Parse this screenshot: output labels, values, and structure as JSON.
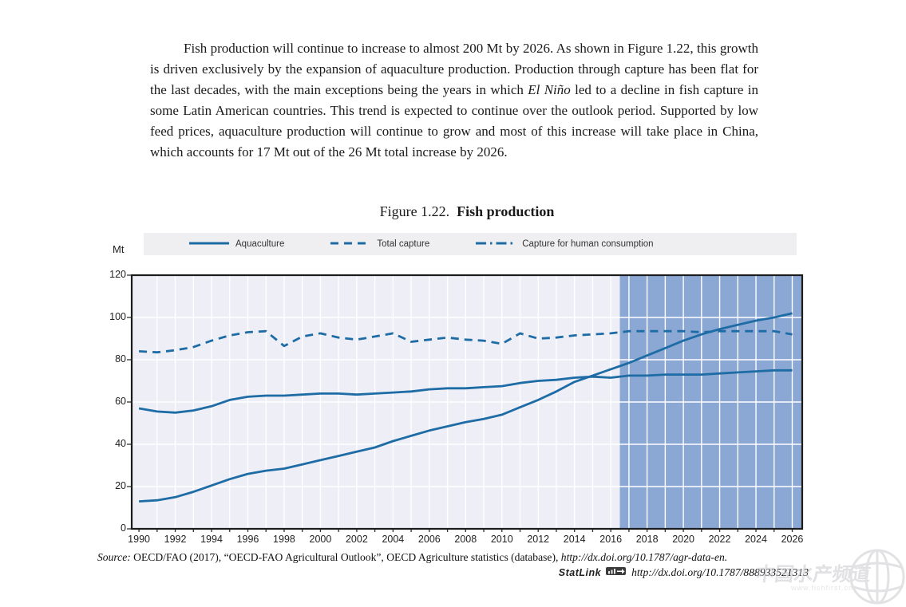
{
  "page": {
    "paragraph": {
      "text_before_italic": "Fish production will continue to increase to almost 200 Mt by 2026. As shown in Figure 1.22, this growth is driven exclusively by the expansion of aquaculture production. Production through capture has been flat for the last decades, with the main exceptions being the years in which ",
      "italic_term": "El Niño",
      "text_after_italic": " led to a decline in fish capture in some Latin American countries. This trend is expected to continue over the outlook period. Supported by low feed prices, aquaculture production will continue to grow and most of this increase will take place in China, which accounts for 17 Mt out of the 26 Mt total increase by 2026."
    },
    "figure": {
      "label": "Figure 1.22.",
      "title": "Fish production"
    },
    "unit_label": "Mt",
    "legend": [
      {
        "name": "Aquaculture",
        "style": "solid"
      },
      {
        "name": "Total capture",
        "style": "dashed"
      },
      {
        "name": "Capture for human consumption",
        "style": "dashdot"
      }
    ],
    "source_line": {
      "prefix_italic": "Source:",
      "text": "  OECD/FAO (2017), “OECD-FAO Agricultural Outlook”, OECD Agriculture statistics (database), ",
      "link_italic": "http://dx.doi.org/10.1787/agr-data-en."
    },
    "statlink": {
      "label": "StatLink",
      "url": "http://dx.doi.org/10.1787/888933521313"
    },
    "watermark": {
      "title": "中国水产频道",
      "url": "www.fishfirst.cn"
    }
  },
  "colors": {
    "line_blue": "#1e6ca5",
    "plot_background": "#edeef6",
    "projection_band": "#8ba7d3",
    "gridline": "#ffffff",
    "frame": "#1c1c1c",
    "legend_bar_background": "#efeff1"
  },
  "chart_data": {
    "type": "line",
    "title": "Figure 1.22. Fish production",
    "xlabel": "",
    "ylabel": "Mt",
    "ylim": [
      0,
      120
    ],
    "xlim": [
      1989.6,
      2026.55
    ],
    "grid": "white yearly vertical and 20-step horizontal gridlines on shaded background",
    "legend_position": "top",
    "projection_band_start": 2016.5,
    "projection_band_end": 2026.55,
    "x": [
      1990,
      1991,
      1992,
      1993,
      1994,
      1995,
      1996,
      1997,
      1998,
      1999,
      2000,
      2001,
      2002,
      2003,
      2004,
      2005,
      2006,
      2007,
      2008,
      2009,
      2010,
      2011,
      2012,
      2013,
      2014,
      2015,
      2016,
      2017,
      2018,
      2019,
      2020,
      2021,
      2022,
      2023,
      2024,
      2025,
      2026
    ],
    "xticks": [
      1990,
      1992,
      1994,
      1996,
      1998,
      2000,
      2002,
      2004,
      2006,
      2008,
      2010,
      2012,
      2014,
      2016,
      2018,
      2020,
      2022,
      2024,
      2026
    ],
    "yticks": [
      0,
      20,
      40,
      60,
      80,
      100,
      120
    ],
    "series": [
      {
        "name": "Aquaculture",
        "line_style": "solid",
        "values": [
          13,
          13.5,
          15,
          17.5,
          20.5,
          23.5,
          26,
          27.5,
          28.5,
          30.5,
          32.5,
          34.5,
          36.5,
          38.5,
          41.5,
          44,
          46.5,
          48.5,
          50.5,
          52,
          54,
          57.5,
          61,
          65,
          69.5,
          72.5,
          75.5,
          78.5,
          82,
          85.5,
          89,
          92,
          94.5,
          96.5,
          98.5,
          100,
          102
        ]
      },
      {
        "name": "Total capture",
        "line_style": "dashed",
        "values": [
          84,
          83.5,
          84.5,
          86,
          89,
          91.5,
          93,
          93.5,
          86.5,
          91,
          92.5,
          90.5,
          89.5,
          91,
          92.5,
          88.5,
          89.5,
          90.5,
          89.5,
          89,
          87.5,
          92.5,
          90,
          90.5,
          91.5,
          92,
          92.5,
          93.5,
          93.5,
          93.5,
          93.5,
          93,
          93.5,
          93.5,
          93.5,
          93.5,
          92
        ]
      },
      {
        "name": "Capture for human consumption",
        "line_style": "dashdot",
        "values": [
          57,
          55.5,
          55,
          56,
          58,
          61,
          62.5,
          63,
          63,
          63.5,
          64,
          64,
          63.5,
          64,
          64.5,
          65,
          66,
          66.5,
          66.5,
          67,
          67.5,
          69,
          70,
          70.5,
          71.5,
          72,
          71.5,
          72.5,
          72.5,
          73,
          73,
          73,
          73.5,
          74,
          74.5,
          75,
          75
        ]
      }
    ]
  }
}
